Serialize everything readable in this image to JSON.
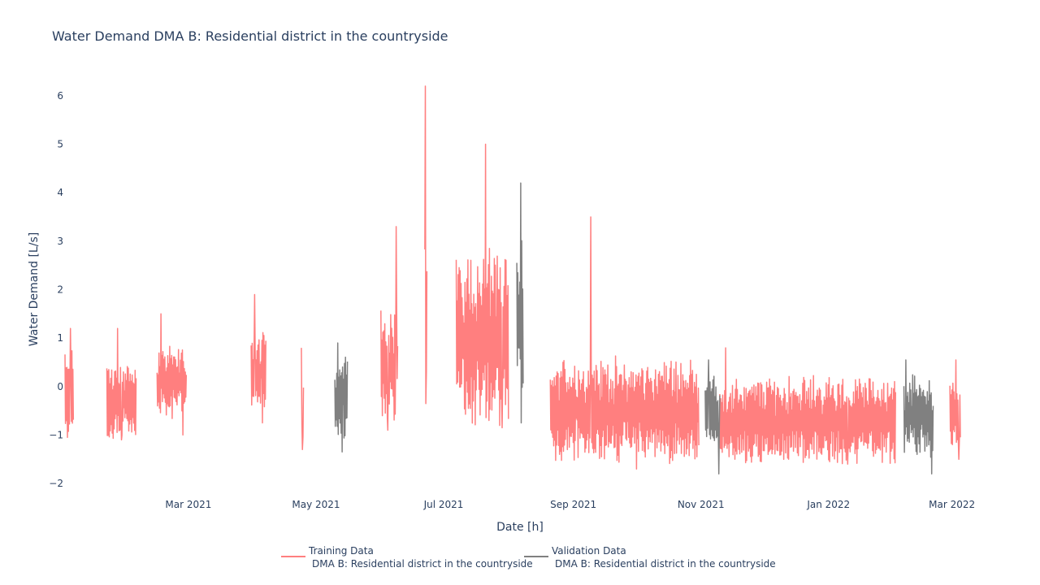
{
  "chart_data": {
    "type": "line",
    "title": "Water Demand DMA B: Residential district in the countryside",
    "xlabel": "Date [h]",
    "ylabel": "Water Demand [L/s]",
    "ylim": [
      -2.25,
      6.3
    ],
    "y_ticks": [
      -2,
      -1,
      0,
      1,
      2,
      3,
      4,
      5,
      6
    ],
    "y_tick_labels": [
      "−2",
      "−1",
      "0",
      "1",
      "2",
      "3",
      "4",
      "5",
      "6"
    ],
    "x_ticks": [
      {
        "date": "2021-03-01",
        "label": "Mar 2021"
      },
      {
        "date": "2021-05-01",
        "label": "May 2021"
      },
      {
        "date": "2021-07-01",
        "label": "Jul 2021"
      },
      {
        "date": "2021-09-01",
        "label": "Sep 2021"
      },
      {
        "date": "2021-11-01",
        "label": "Nov 2021"
      },
      {
        "date": "2022-01-01",
        "label": "Jan 2022"
      },
      {
        "date": "2022-03-01",
        "label": "Mar 2022"
      }
    ],
    "xlim": [
      "2021-01-01",
      "2022-03-12"
    ],
    "grid": false,
    "legend_position": "bottom-center",
    "series": [
      {
        "name": "Training Data",
        "name_line2": "DMA B: Residential district in the countryside",
        "color": "#ff7f7f",
        "segments": [
          {
            "start": "2021-01-01",
            "end": "2021-01-05",
            "base": -0.2,
            "amp": 0.8,
            "peak": 1.2,
            "trough": -1.05
          },
          {
            "start": "2021-01-21",
            "end": "2021-02-04",
            "base": -0.3,
            "amp": 0.7,
            "peak": 1.2,
            "trough": -1.1
          },
          {
            "start": "2021-02-14",
            "end": "2021-02-28",
            "base": 0.1,
            "amp": 0.6,
            "peak": 1.5,
            "trough": -1.0
          },
          {
            "start": "2021-03-31",
            "end": "2021-04-07",
            "base": 0.3,
            "amp": 0.7,
            "peak": 1.9,
            "trough": -0.75
          },
          {
            "start": "2021-04-24",
            "end": "2021-04-25",
            "base": -0.3,
            "amp": 0.7,
            "peak": 0.8,
            "trough": -1.3
          },
          {
            "start": "2021-06-01",
            "end": "2021-06-09",
            "base": 0.5,
            "amp": 1.0,
            "peak": 3.3,
            "trough": -0.9
          },
          {
            "start": "2021-06-22",
            "end": "2021-06-23",
            "base": 1.5,
            "amp": 2.0,
            "peak": 6.2,
            "trough": -0.35
          },
          {
            "start": "2021-07-07",
            "end": "2021-08-01",
            "base": 1.0,
            "amp": 1.5,
            "peak": 5.0,
            "trough": -0.85
          },
          {
            "start": "2021-08-21",
            "end": "2021-10-31",
            "base": -0.5,
            "amp": 0.9,
            "peak": 3.5,
            "trough": -1.7
          },
          {
            "start": "2021-11-10",
            "end": "2022-02-02",
            "base": -0.7,
            "amp": 0.75,
            "peak": 0.8,
            "trough": -1.6
          },
          {
            "start": "2022-02-28",
            "end": "2022-03-05",
            "base": -0.6,
            "amp": 0.6,
            "peak": 0.55,
            "trough": -1.5
          }
        ]
      },
      {
        "name": "Validation Data",
        "name_line2": "DMA B: Residential district in the countryside",
        "color": "#808080",
        "segments": [
          {
            "start": "2021-05-10",
            "end": "2021-05-16",
            "base": -0.2,
            "amp": 0.7,
            "peak": 0.9,
            "trough": -1.35
          },
          {
            "start": "2021-08-05",
            "end": "2021-08-08",
            "base": 1.5,
            "amp": 1.5,
            "peak": 4.2,
            "trough": -0.75
          },
          {
            "start": "2021-11-03",
            "end": "2021-11-10",
            "base": -0.6,
            "amp": 0.7,
            "peak": 0.55,
            "trough": -1.8
          },
          {
            "start": "2022-02-06",
            "end": "2022-02-20",
            "base": -0.6,
            "amp": 0.7,
            "peak": 0.55,
            "trough": -1.8
          }
        ]
      }
    ]
  }
}
